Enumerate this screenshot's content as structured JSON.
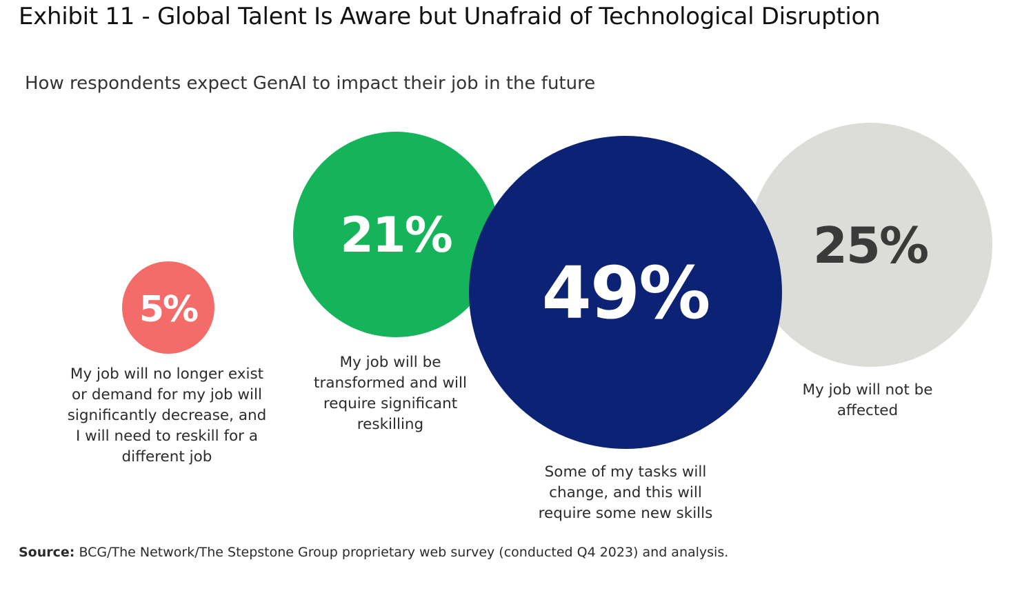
{
  "title": "Exhibit 11 - Global Talent Is Aware but Unafraid of Technological Disruption",
  "subtitle": "How respondents expect GenAI to impact their job in the future",
  "source": {
    "label": "Source:",
    "text": "BCG/The Network/The Stepstone Group proprietary web survey (conducted Q4 2023) and analysis."
  },
  "chart_data": {
    "type": "bubble",
    "unit": "%",
    "items": [
      {
        "value": 5,
        "display": "5%",
        "label": "My job will no longer exist or demand for my job will significantly decrease, and I will need to reskill for a different job",
        "color": "#f36c6a",
        "text_color": "#ffffff"
      },
      {
        "value": 21,
        "display": "21%",
        "label": "My job will be transformed and will require significant reskilling",
        "color": "#16b45a",
        "text_color": "#ffffff"
      },
      {
        "value": 49,
        "display": "49%",
        "label": "Some of my tasks will change, and this will require some new skills",
        "color": "#0c2274",
        "text_color": "#ffffff"
      },
      {
        "value": 25,
        "display": "25%",
        "label": "My job will not be affected",
        "color": "#dcdcd8",
        "text_color": "#3a3a3a"
      }
    ]
  }
}
